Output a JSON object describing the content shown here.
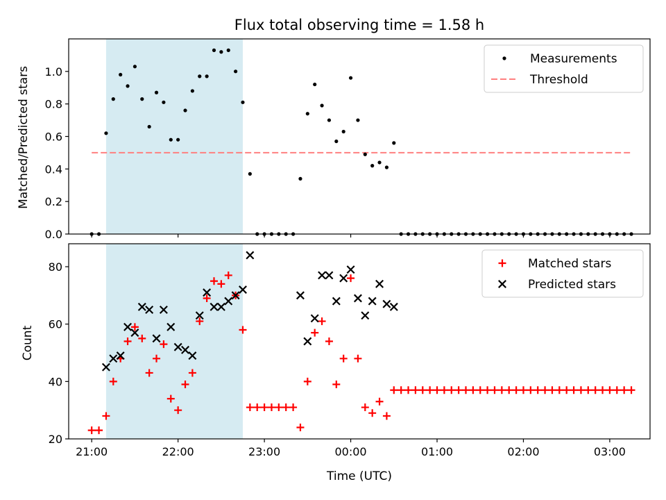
{
  "figure": {
    "title": "Flux total observing time = 1.58 h",
    "xlabel": "Time (UTC)",
    "x_ticks": [
      {
        "t": 0,
        "label": "21:00"
      },
      {
        "t": 60,
        "label": "22:00"
      },
      {
        "t": 120,
        "label": "23:00"
      },
      {
        "t": 180,
        "label": "00:00"
      },
      {
        "t": 240,
        "label": "01:00"
      },
      {
        "t": 300,
        "label": "02:00"
      },
      {
        "t": 360,
        "label": "03:00"
      }
    ],
    "xlim": [
      -16,
      388
    ],
    "highlight_span": [
      10,
      105
    ],
    "colors": {
      "span": "#add8e6",
      "measurements": "#000000",
      "threshold": "#ff7f7f",
      "matched": "#ff0000",
      "predicted": "#000000"
    }
  },
  "chart_data": [
    {
      "type": "scatter",
      "ylabel": "Matched/Predicted stars",
      "ylim": [
        0,
        1.2
      ],
      "y_ticks": [
        "0.0",
        "0.2",
        "0.4",
        "0.6",
        "0.8",
        "1.0"
      ],
      "legend": {
        "position": "upper right",
        "entries": [
          "Measurements",
          "Threshold"
        ]
      },
      "threshold": {
        "y": 0.5,
        "x_range": [
          0,
          375
        ]
      },
      "series": [
        {
          "name": "Measurements",
          "x": [
            0,
            5,
            10,
            15,
            20,
            25,
            30,
            35,
            40,
            45,
            50,
            55,
            60,
            65,
            70,
            75,
            80,
            85,
            90,
            95,
            100,
            105,
            110,
            115,
            120,
            125,
            130,
            135,
            140,
            145,
            150,
            155,
            160,
            165,
            170,
            175,
            180,
            185,
            190,
            195,
            200,
            205,
            210,
            215,
            220,
            225,
            230,
            235,
            240,
            245,
            250,
            255,
            260,
            265,
            270,
            275,
            280,
            285,
            290,
            295,
            300,
            305,
            310,
            315,
            320,
            325,
            330,
            335,
            340,
            345,
            350,
            355,
            360,
            365,
            370,
            375
          ],
          "y": [
            0,
            0,
            0.62,
            0.83,
            0.98,
            0.91,
            1.03,
            0.83,
            0.66,
            0.87,
            0.81,
            0.58,
            0.58,
            0.76,
            0.88,
            0.97,
            0.97,
            1.13,
            1.12,
            1.13,
            1.0,
            0.81,
            0.37,
            0,
            0,
            0,
            0,
            0,
            0,
            0.34,
            0.74,
            0.92,
            0.79,
            0.7,
            0.57,
            0.63,
            0.96,
            0.7,
            0.49,
            0.42,
            0.44,
            0.41,
            0.56,
            0,
            0,
            0,
            0,
            0,
            0,
            0,
            0,
            0,
            0,
            0,
            0,
            0,
            0,
            0,
            0,
            0,
            0,
            0,
            0,
            0,
            0,
            0,
            0,
            0,
            0,
            0,
            0,
            0,
            0,
            0,
            0,
            0
          ]
        }
      ]
    },
    {
      "type": "scatter",
      "ylabel": "Count",
      "ylim": [
        20,
        88
      ],
      "y_ticks": [
        "20",
        "40",
        "60",
        "80"
      ],
      "legend": {
        "position": "upper right",
        "entries": [
          "Matched stars",
          "Predicted stars"
        ]
      },
      "series": [
        {
          "name": "Matched stars",
          "marker": "+",
          "x": [
            0,
            5,
            10,
            15,
            20,
            25,
            30,
            35,
            40,
            45,
            50,
            55,
            60,
            65,
            70,
            75,
            80,
            85,
            90,
            95,
            100,
            105,
            110,
            115,
            120,
            125,
            130,
            135,
            140,
            145,
            150,
            155,
            160,
            165,
            170,
            175,
            180,
            185,
            190,
            195,
            200,
            205,
            210,
            215,
            220,
            225,
            230,
            235,
            240,
            245,
            250,
            255,
            260,
            265,
            270,
            275,
            280,
            285,
            290,
            295,
            300,
            305,
            310,
            315,
            320,
            325,
            330,
            335,
            340,
            345,
            350,
            355,
            360,
            365,
            370,
            375
          ],
          "y": [
            23,
            23,
            28,
            40,
            48,
            54,
            59,
            55,
            43,
            48,
            53,
            34,
            30,
            39,
            43,
            61,
            69,
            75,
            74,
            77,
            70,
            58,
            31,
            31,
            31,
            31,
            31,
            31,
            31,
            24,
            40,
            57,
            61,
            54,
            39,
            48,
            76,
            48,
            31,
            29,
            33,
            28,
            37,
            37,
            37,
            37,
            37,
            37,
            37,
            37,
            37,
            37,
            37,
            37,
            37,
            37,
            37,
            37,
            37,
            37,
            37,
            37,
            37,
            37,
            37,
            37,
            37,
            37,
            37,
            37,
            37,
            37,
            37,
            37,
            37,
            37
          ]
        },
        {
          "name": "Predicted stars",
          "marker": "x",
          "x": [
            10,
            15,
            20,
            25,
            30,
            35,
            40,
            45,
            50,
            55,
            60,
            65,
            70,
            75,
            80,
            85,
            90,
            95,
            100,
            105,
            110,
            145,
            150,
            155,
            160,
            165,
            170,
            175,
            180,
            185,
            190,
            195,
            200,
            205,
            210
          ],
          "y": [
            45,
            48,
            49,
            59,
            57,
            66,
            65,
            55,
            65,
            59,
            52,
            51,
            49,
            63,
            71,
            66,
            66,
            68,
            70,
            72,
            84,
            70,
            54,
            62,
            77,
            77,
            68,
            76,
            79,
            69,
            63,
            68,
            74,
            67,
            66
          ]
        }
      ]
    }
  ]
}
